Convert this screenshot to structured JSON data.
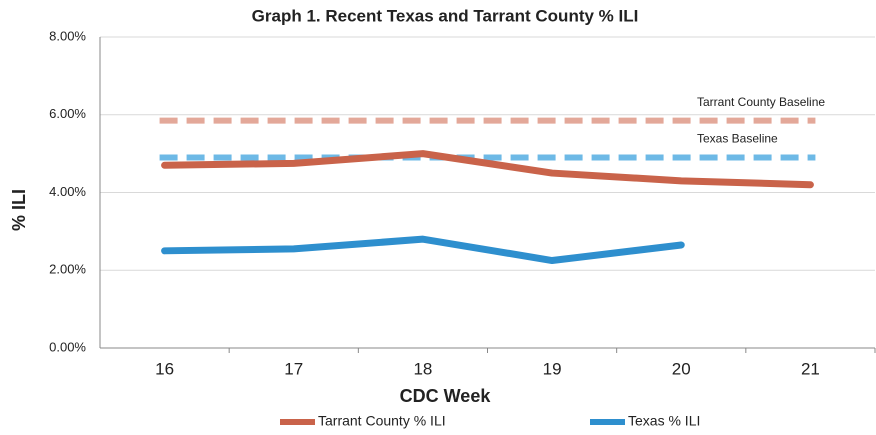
{
  "chart_data": {
    "type": "line",
    "title": "Graph 1. Recent Texas and Tarrant County % ILI",
    "x_label": "CDC Week",
    "y_label": "% ILI",
    "categories": [
      "16",
      "17",
      "18",
      "19",
      "20",
      "21"
    ],
    "series": [
      {
        "name": "Tarrant County % ILI",
        "color": "#c9634a",
        "values": [
          4.7,
          4.75,
          5.0,
          4.5,
          4.3,
          4.2
        ]
      },
      {
        "name": "Texas % ILI",
        "color": "#2e8fce",
        "values": [
          2.5,
          2.55,
          2.8,
          2.25,
          2.65,
          null
        ]
      }
    ],
    "baselines": [
      {
        "name": "Tarrant County Baseline",
        "value": 5.85,
        "color": "#e3a899"
      },
      {
        "name": "Texas Baseline",
        "value": 4.9,
        "color": "#6db9e6"
      }
    ],
    "ylim": [
      0,
      8
    ],
    "yticks": [
      {
        "value": 0,
        "label": "0.00%"
      },
      {
        "value": 2,
        "label": "2.00%"
      },
      {
        "value": 4,
        "label": "4.00%"
      },
      {
        "value": 6,
        "label": "6.00%"
      },
      {
        "value": 8,
        "label": "8.00%"
      }
    ],
    "grid": true,
    "legend": "bottom"
  }
}
